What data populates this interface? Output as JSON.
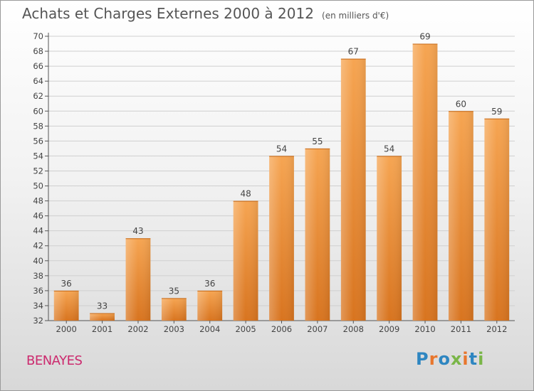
{
  "header": {
    "title": "Achats et Charges Externes 2000 à 2012",
    "unit": "(en milliers d'€)"
  },
  "footer": {
    "city": "BENAYES",
    "logo": {
      "text": "Proxiti",
      "letters": [
        {
          "char": "P",
          "color": "#2e86c1"
        },
        {
          "char": "r",
          "color": "#e8762d"
        },
        {
          "char": "o",
          "color": "#2e86c1"
        },
        {
          "char": "x",
          "color": "#7ab648"
        },
        {
          "char": "i",
          "color": "#e8762d"
        },
        {
          "char": "t",
          "color": "#2e86c1"
        },
        {
          "char": "i",
          "color": "#7ab648"
        }
      ]
    }
  },
  "colors": {
    "bar_top": "#f6a552",
    "bar_bottom": "#d8741f",
    "axis": "#555555",
    "grid": "#cfcfcf"
  },
  "chart_data": {
    "type": "bar",
    "title": "Achats et Charges Externes 2000 à 2012",
    "subtitle": "(en milliers d'€)",
    "categories": [
      "2000",
      "2001",
      "2002",
      "2003",
      "2004",
      "2005",
      "2006",
      "2007",
      "2008",
      "2009",
      "2010",
      "2011",
      "2012"
    ],
    "values": [
      36,
      33,
      43,
      35,
      36,
      48,
      54,
      55,
      67,
      54,
      69,
      60,
      59
    ],
    "ylim": [
      32,
      70
    ],
    "ytick_step": 2,
    "xlabel": "",
    "ylabel": "",
    "grid": true,
    "legend": "none"
  }
}
